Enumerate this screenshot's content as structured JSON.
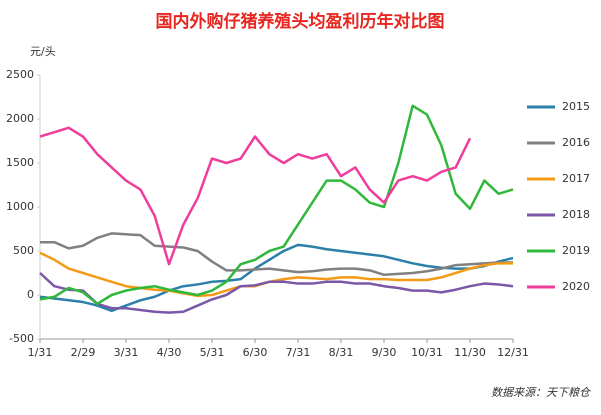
{
  "chart_data": {
    "type": "line",
    "title": "国内外购仔猪养殖头均盈利历年对比图",
    "y_label": "元/头",
    "source": "数据来源：天下粮仓",
    "categories": [
      "1/31",
      null,
      null,
      "2/29",
      null,
      null,
      "3/31",
      null,
      null,
      "4/30",
      null,
      null,
      "5/31",
      null,
      null,
      "6/30",
      null,
      null,
      "7/31",
      null,
      null,
      "8/31",
      null,
      null,
      "9/30",
      null,
      null,
      "10/31",
      null,
      null,
      "11/30",
      null,
      null,
      "12/31"
    ],
    "ylim": [
      -500,
      2500
    ],
    "yticks": [
      -500,
      0,
      500,
      1000,
      1500,
      2000,
      2500
    ],
    "grid": false,
    "legend": "right",
    "series": [
      {
        "name": "2015",
        "color": "#2b7fa8",
        "values": [
          -20,
          -40,
          -60,
          -80,
          -120,
          -180,
          -120,
          -60,
          -20,
          50,
          100,
          120,
          150,
          160,
          180,
          300,
          400,
          500,
          570,
          550,
          520,
          500,
          480,
          460,
          440,
          400,
          360,
          330,
          310,
          300,
          300,
          330,
          380,
          420
        ]
      },
      {
        "name": "2016",
        "color": "#808080",
        "values": [
          600,
          600,
          530,
          560,
          650,
          700,
          690,
          680,
          560,
          550,
          540,
          500,
          380,
          280,
          280,
          290,
          300,
          280,
          260,
          270,
          290,
          300,
          300,
          280,
          230,
          240,
          250,
          270,
          300,
          340,
          350,
          360,
          370,
          370
        ]
      },
      {
        "name": "2017",
        "color": "#f59a16",
        "values": [
          480,
          400,
          300,
          250,
          200,
          150,
          100,
          80,
          60,
          50,
          20,
          -10,
          0,
          50,
          100,
          100,
          150,
          180,
          200,
          190,
          180,
          200,
          200,
          180,
          180,
          170,
          170,
          170,
          200,
          250,
          300,
          340,
          360,
          360
        ]
      },
      {
        "name": "2018",
        "color": "#7b57a8",
        "values": [
          250,
          100,
          60,
          50,
          -100,
          -150,
          -150,
          -170,
          -190,
          -200,
          -190,
          -120,
          -50,
          0,
          100,
          110,
          150,
          150,
          130,
          130,
          150,
          150,
          130,
          130,
          100,
          80,
          50,
          50,
          30,
          60,
          100,
          130,
          120,
          100
        ]
      },
      {
        "name": "2019",
        "color": "#2fb83a",
        "values": [
          -50,
          -20,
          80,
          30,
          -100,
          0,
          50,
          80,
          100,
          60,
          30,
          0,
          50,
          150,
          350,
          400,
          500,
          550,
          800,
          1050,
          1300,
          1300,
          1200,
          1050,
          1000,
          1500,
          2150,
          2050,
          1700,
          1150,
          980,
          1300,
          1150,
          1200
        ]
      },
      {
        "name": "2020",
        "color": "#ef3d9c",
        "values": [
          1800,
          1850,
          1900,
          1800,
          1600,
          1450,
          1300,
          1200,
          900,
          350,
          800,
          1100,
          1550,
          1500,
          1550,
          1800,
          1600,
          1500,
          1600,
          1550,
          1600,
          1350,
          1450,
          1200,
          1050,
          1300,
          1350,
          1300,
          1400,
          1450,
          1780,
          null,
          null,
          null
        ]
      }
    ]
  }
}
